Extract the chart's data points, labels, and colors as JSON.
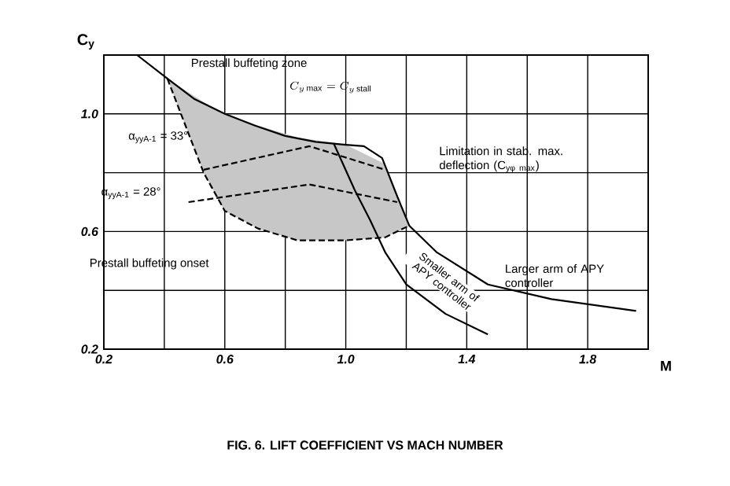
{
  "chart_data": {
    "type": "line",
    "title": "FIG. 6. LIFT COEFFICIENT VS MACH NUMBER",
    "xlabel": "M",
    "ylabel": "C$_{y}$",
    "xlim": [
      0.2,
      2.0
    ],
    "ylim": [
      0.2,
      1.2
    ],
    "xticks": [
      0.2,
      {
        "value": 0.4,
        "label": null
      },
      0.6,
      {
        "value": 0.8,
        "label": null
      },
      {
        "value": 1.0,
        "label": "1.0"
      },
      {
        "value": 1.2,
        "label": null
      },
      1.4,
      {
        "value": 1.6,
        "label": null
      },
      1.8,
      {
        "value": 2.0,
        "label": null
      }
    ],
    "yticks": [
      0.2,
      {
        "value": 0.4,
        "label": null
      },
      0.6,
      {
        "value": 0.8,
        "label": null
      },
      {
        "value": 1.0,
        "label": "1.0"
      },
      {
        "value": 1.2,
        "label": null
      }
    ],
    "grid": true,
    "legend": false,
    "series": [
      {
        "color": "#000000",
        "line_style": "solid",
        "x": [
          0.31,
          0.41,
          0.5,
          0.6,
          0.7,
          0.8,
          0.9,
          1.0,
          1.06,
          1.12,
          1.17,
          1.21,
          1.3,
          1.47,
          1.68,
          1.96
        ],
        "values": [
          1.2,
          1.12,
          1.05,
          1.0,
          0.96,
          0.925,
          0.905,
          0.895,
          0.89,
          0.85,
          0.72,
          0.62,
          0.53,
          0.42,
          0.37,
          0.33
        ]
      },
      {
        "color": "#000000",
        "line_style": "solid",
        "x": [
          0.96,
          1.03,
          1.08,
          1.13,
          1.2,
          1.33,
          1.47
        ],
        "values": [
          0.9,
          0.74,
          0.64,
          0.53,
          0.42,
          0.32,
          0.25
        ]
      },
      {
        "color": "#000000",
        "line_style": "dashed",
        "x": [
          0.41,
          0.47,
          0.53,
          0.6,
          0.71,
          0.84,
          1.0,
          1.13,
          1.21
        ],
        "values": [
          1.12,
          0.96,
          0.8,
          0.67,
          0.61,
          0.57,
          0.57,
          0.58,
          0.62
        ],
        "lower": [
          1.12,
          0.96,
          0.8,
          0.67,
          0.61,
          0.57,
          0.57,
          0.58,
          0.62
        ],
        "upper": [
          1.12,
          1.08,
          1.04,
          1.0,
          0.96,
          0.92,
          0.895,
          0.83,
          0.62
        ]
      },
      {
        "color": "#000000",
        "line_style": "dashed",
        "x": [
          0.53,
          0.88,
          1.13
        ],
        "values": [
          0.81,
          0.89,
          0.81
        ]
      },
      {
        "color": "#000000",
        "line_style": "dashed",
        "x": [
          0.48,
          0.88,
          1.17
        ],
        "values": [
          0.7,
          0.76,
          0.7
        ]
      }
    ],
    "annotations": [
      "Prestall buffeting zone",
      "C_{y\\,\\mathrm{max}} = C_{y\\,\\mathrm{stall}}",
      "Limitation in stab. max. deflection (C$_{yφ max}$)",
      "α$_{yyA-1}$ = 33°",
      "α$_{yyA-1}$ = 28°",
      "Prestall buffeting onset",
      "Smaller arm of APY controller",
      "Larger arm of APY controller"
    ]
  }
}
